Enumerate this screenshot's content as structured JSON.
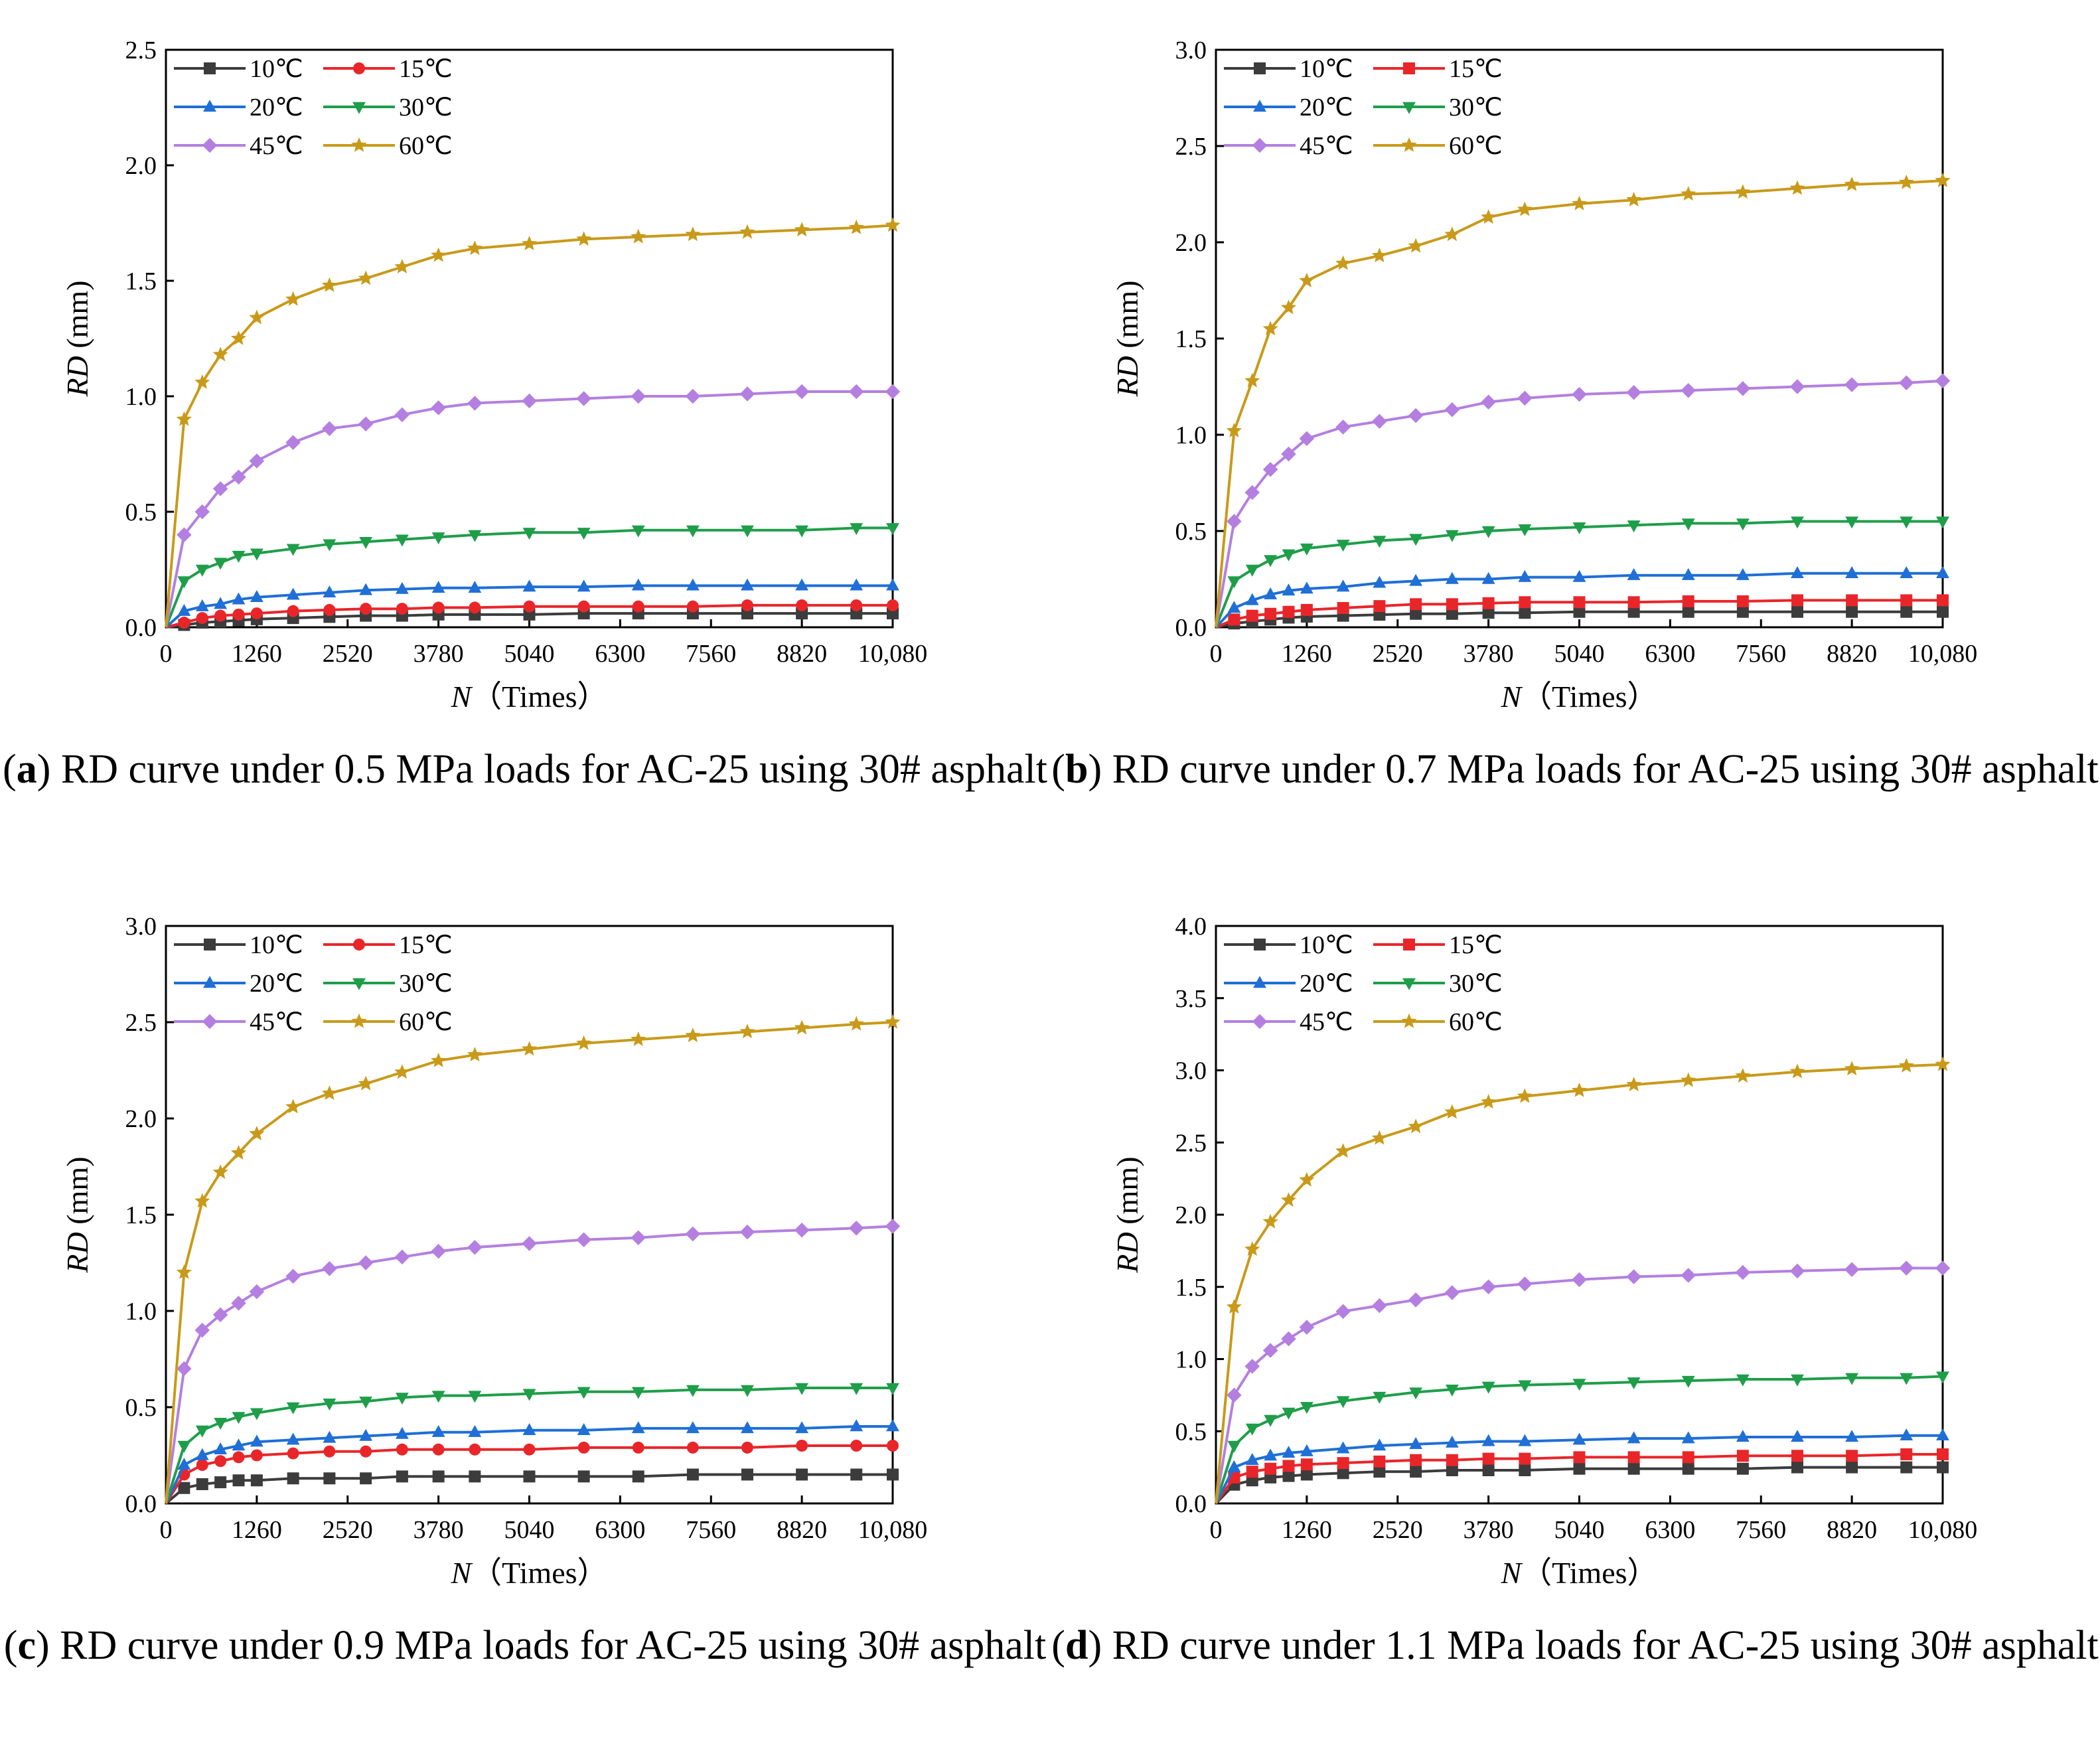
{
  "chart_data": [
    {
      "type": "line",
      "panel_letter": "a",
      "caption": "RD curve under 0.5 MPa loads for AC-25 using 30# asphalt",
      "xlabel_var": "N",
      "xlabel_unit": "（Times）",
      "ylabel_var": "RD",
      "ylabel_unit": " (mm)",
      "xlim": [
        0,
        10080
      ],
      "ylim": [
        0,
        2.5
      ],
      "xticks": [
        0,
        1260,
        2520,
        3780,
        5040,
        6300,
        7560,
        8820,
        10080
      ],
      "xtick_labels": [
        "0",
        "1260",
        "2520",
        "3780",
        "5040",
        "6300",
        "7560",
        "8820",
        "10,080"
      ],
      "yticks": [
        0,
        0.5,
        1.0,
        1.5,
        2.0,
        2.5
      ],
      "ytick_labels": [
        "0.0",
        "0.5",
        "1.0",
        "1.5",
        "2.0",
        "2.5"
      ],
      "x": [
        0,
        252,
        504,
        756,
        1008,
        1260,
        1764,
        2268,
        2772,
        3276,
        3780,
        4284,
        5040,
        5796,
        6552,
        7308,
        8064,
        8820,
        9576,
        10080
      ],
      "legend_position": "top-left",
      "series": [
        {
          "name": "10℃",
          "color": "#3c3c3c",
          "marker": "square",
          "values": [
            0.0,
            0.01,
            0.02,
            0.025,
            0.03,
            0.035,
            0.04,
            0.045,
            0.05,
            0.05,
            0.055,
            0.055,
            0.055,
            0.06,
            0.06,
            0.06,
            0.06,
            0.06,
            0.06,
            0.06
          ]
        },
        {
          "name": "15℃",
          "color": "#e8262a",
          "marker": "circle",
          "values": [
            0.0,
            0.02,
            0.04,
            0.05,
            0.055,
            0.06,
            0.07,
            0.075,
            0.08,
            0.08,
            0.085,
            0.085,
            0.09,
            0.09,
            0.09,
            0.09,
            0.095,
            0.095,
            0.095,
            0.095
          ]
        },
        {
          "name": "20℃",
          "color": "#1f6fd6",
          "marker": "triangle-up",
          "values": [
            0.0,
            0.07,
            0.09,
            0.1,
            0.12,
            0.13,
            0.14,
            0.15,
            0.16,
            0.165,
            0.17,
            0.17,
            0.175,
            0.175,
            0.18,
            0.18,
            0.18,
            0.18,
            0.18,
            0.18
          ]
        },
        {
          "name": "30℃",
          "color": "#1f9e4a",
          "marker": "triangle-down",
          "values": [
            0.0,
            0.2,
            0.25,
            0.28,
            0.31,
            0.32,
            0.34,
            0.36,
            0.37,
            0.38,
            0.39,
            0.4,
            0.41,
            0.41,
            0.42,
            0.42,
            0.42,
            0.42,
            0.43,
            0.43
          ]
        },
        {
          "name": "45℃",
          "color": "#b47fe0",
          "marker": "diamond",
          "values": [
            0.0,
            0.4,
            0.5,
            0.6,
            0.65,
            0.72,
            0.8,
            0.86,
            0.88,
            0.92,
            0.95,
            0.97,
            0.98,
            0.99,
            1.0,
            1.0,
            1.01,
            1.02,
            1.02,
            1.02
          ]
        },
        {
          "name": "60℃",
          "color": "#c99a1a",
          "marker": "star",
          "values": [
            0.0,
            0.9,
            1.06,
            1.18,
            1.25,
            1.34,
            1.42,
            1.48,
            1.51,
            1.56,
            1.61,
            1.64,
            1.66,
            1.68,
            1.69,
            1.7,
            1.71,
            1.72,
            1.73,
            1.74
          ]
        }
      ]
    },
    {
      "type": "line",
      "panel_letter": "b",
      "caption": "RD curve under 0.7 MPa loads for AC-25 using 30# asphalt",
      "xlabel_var": "N",
      "xlabel_unit": "（Times）",
      "ylabel_var": "RD",
      "ylabel_unit": " (mm)",
      "xlim": [
        0,
        10080
      ],
      "ylim": [
        0,
        3.0
      ],
      "xticks": [
        0,
        1260,
        2520,
        3780,
        5040,
        6300,
        7560,
        8820,
        10080
      ],
      "xtick_labels": [
        "0",
        "1260",
        "2520",
        "3780",
        "5040",
        "6300",
        "7560",
        "8820",
        "10,080"
      ],
      "yticks": [
        0,
        0.5,
        1.0,
        1.5,
        2.0,
        2.5,
        3.0
      ],
      "ytick_labels": [
        "0.0",
        "0.5",
        "1.0",
        "1.5",
        "2.0",
        "2.5",
        "3.0"
      ],
      "x": [
        0,
        252,
        504,
        756,
        1008,
        1260,
        1764,
        2268,
        2772,
        3276,
        3780,
        4284,
        5040,
        5796,
        6552,
        7308,
        8064,
        8820,
        9576,
        10080
      ],
      "legend_position": "top-left",
      "series": [
        {
          "name": "10℃",
          "color": "#3c3c3c",
          "marker": "square",
          "values": [
            0.0,
            0.02,
            0.03,
            0.04,
            0.05,
            0.055,
            0.06,
            0.065,
            0.07,
            0.07,
            0.075,
            0.075,
            0.08,
            0.08,
            0.08,
            0.08,
            0.08,
            0.08,
            0.08,
            0.08
          ]
        },
        {
          "name": "15℃",
          "color": "#e8262a",
          "marker": "square",
          "values": [
            0.0,
            0.04,
            0.06,
            0.07,
            0.08,
            0.09,
            0.1,
            0.11,
            0.12,
            0.12,
            0.125,
            0.13,
            0.13,
            0.13,
            0.135,
            0.135,
            0.14,
            0.14,
            0.14,
            0.14
          ]
        },
        {
          "name": "20℃",
          "color": "#1f6fd6",
          "marker": "triangle-up",
          "values": [
            0.0,
            0.1,
            0.14,
            0.17,
            0.19,
            0.2,
            0.21,
            0.23,
            0.24,
            0.25,
            0.25,
            0.26,
            0.26,
            0.27,
            0.27,
            0.27,
            0.28,
            0.28,
            0.28,
            0.28
          ]
        },
        {
          "name": "30℃",
          "color": "#1f9e4a",
          "marker": "triangle-down",
          "values": [
            0.0,
            0.24,
            0.3,
            0.35,
            0.38,
            0.41,
            0.43,
            0.45,
            0.46,
            0.48,
            0.5,
            0.51,
            0.52,
            0.53,
            0.54,
            0.54,
            0.55,
            0.55,
            0.55,
            0.55
          ]
        },
        {
          "name": "45℃",
          "color": "#b47fe0",
          "marker": "diamond",
          "values": [
            0.0,
            0.55,
            0.7,
            0.82,
            0.9,
            0.98,
            1.04,
            1.07,
            1.1,
            1.13,
            1.17,
            1.19,
            1.21,
            1.22,
            1.23,
            1.24,
            1.25,
            1.26,
            1.27,
            1.28
          ]
        },
        {
          "name": "60℃",
          "color": "#c99a1a",
          "marker": "star",
          "values": [
            0.0,
            1.02,
            1.28,
            1.55,
            1.66,
            1.8,
            1.89,
            1.93,
            1.98,
            2.04,
            2.13,
            2.17,
            2.2,
            2.22,
            2.25,
            2.26,
            2.28,
            2.3,
            2.31,
            2.32
          ]
        }
      ]
    },
    {
      "type": "line",
      "panel_letter": "c",
      "caption": "RD curve under 0.9 MPa loads for AC-25 using 30# asphalt",
      "xlabel_var": "N",
      "xlabel_unit": "（Times）",
      "ylabel_var": "RD",
      "ylabel_unit": " (mm)",
      "xlim": [
        0,
        10080
      ],
      "ylim": [
        0,
        3.0
      ],
      "xticks": [
        0,
        1260,
        2520,
        3780,
        5040,
        6300,
        7560,
        8820,
        10080
      ],
      "xtick_labels": [
        "0",
        "1260",
        "2520",
        "3780",
        "5040",
        "6300",
        "7560",
        "8820",
        "10,080"
      ],
      "yticks": [
        0,
        0.5,
        1.0,
        1.5,
        2.0,
        2.5,
        3.0
      ],
      "ytick_labels": [
        "0.0",
        "0.5",
        "1.0",
        "1.5",
        "2.0",
        "2.5",
        "3.0"
      ],
      "x": [
        0,
        252,
        504,
        756,
        1008,
        1260,
        1764,
        2268,
        2772,
        3276,
        3780,
        4284,
        5040,
        5796,
        6552,
        7308,
        8064,
        8820,
        9576,
        10080
      ],
      "legend_position": "top-left",
      "series": [
        {
          "name": "10℃",
          "color": "#3c3c3c",
          "marker": "square",
          "values": [
            0.0,
            0.08,
            0.1,
            0.11,
            0.12,
            0.12,
            0.13,
            0.13,
            0.13,
            0.14,
            0.14,
            0.14,
            0.14,
            0.14,
            0.14,
            0.15,
            0.15,
            0.15,
            0.15,
            0.15
          ]
        },
        {
          "name": "15℃",
          "color": "#e8262a",
          "marker": "circle",
          "values": [
            0.0,
            0.15,
            0.2,
            0.22,
            0.24,
            0.25,
            0.26,
            0.27,
            0.27,
            0.28,
            0.28,
            0.28,
            0.28,
            0.29,
            0.29,
            0.29,
            0.29,
            0.3,
            0.3,
            0.3
          ]
        },
        {
          "name": "20℃",
          "color": "#1f6fd6",
          "marker": "triangle-up",
          "values": [
            0.0,
            0.2,
            0.25,
            0.28,
            0.3,
            0.32,
            0.33,
            0.34,
            0.35,
            0.36,
            0.37,
            0.37,
            0.38,
            0.38,
            0.39,
            0.39,
            0.39,
            0.39,
            0.4,
            0.4
          ]
        },
        {
          "name": "30℃",
          "color": "#1f9e4a",
          "marker": "triangle-down",
          "values": [
            0.0,
            0.3,
            0.38,
            0.42,
            0.45,
            0.47,
            0.5,
            0.52,
            0.53,
            0.55,
            0.56,
            0.56,
            0.57,
            0.58,
            0.58,
            0.59,
            0.59,
            0.6,
            0.6,
            0.6
          ]
        },
        {
          "name": "45℃",
          "color": "#b47fe0",
          "marker": "diamond",
          "values": [
            0.0,
            0.7,
            0.9,
            0.98,
            1.04,
            1.1,
            1.18,
            1.22,
            1.25,
            1.28,
            1.31,
            1.33,
            1.35,
            1.37,
            1.38,
            1.4,
            1.41,
            1.42,
            1.43,
            1.44
          ]
        },
        {
          "name": "60℃",
          "color": "#c99a1a",
          "marker": "star",
          "values": [
            0.0,
            1.2,
            1.57,
            1.72,
            1.82,
            1.92,
            2.06,
            2.13,
            2.18,
            2.24,
            2.3,
            2.33,
            2.36,
            2.39,
            2.41,
            2.43,
            2.45,
            2.47,
            2.49,
            2.5
          ]
        }
      ]
    },
    {
      "type": "line",
      "panel_letter": "d",
      "caption": "RD curve under 1.1 MPa loads for AC-25 using 30# asphalt",
      "xlabel_var": "N",
      "xlabel_unit": "（Times）",
      "ylabel_var": "RD",
      "ylabel_unit": " (mm)",
      "xlim": [
        0,
        10080
      ],
      "ylim": [
        0,
        4.0
      ],
      "xticks": [
        0,
        1260,
        2520,
        3780,
        5040,
        6300,
        7560,
        8820,
        10080
      ],
      "xtick_labels": [
        "0",
        "1260",
        "2520",
        "3780",
        "5040",
        "6300",
        "7560",
        "8820",
        "10,080"
      ],
      "yticks": [
        0,
        0.5,
        1.0,
        1.5,
        2.0,
        2.5,
        3.0,
        3.5,
        4.0
      ],
      "ytick_labels": [
        "0.0",
        "0.5",
        "1.0",
        "1.5",
        "2.0",
        "2.5",
        "3.0",
        "3.5",
        "4.0"
      ],
      "x": [
        0,
        252,
        504,
        756,
        1008,
        1260,
        1764,
        2268,
        2772,
        3276,
        3780,
        4284,
        5040,
        5796,
        6552,
        7308,
        8064,
        8820,
        9576,
        10080
      ],
      "legend_position": "top-left",
      "series": [
        {
          "name": "10℃",
          "color": "#3c3c3c",
          "marker": "square",
          "values": [
            0.0,
            0.13,
            0.16,
            0.18,
            0.19,
            0.2,
            0.21,
            0.22,
            0.22,
            0.23,
            0.23,
            0.23,
            0.24,
            0.24,
            0.24,
            0.24,
            0.25,
            0.25,
            0.25,
            0.25
          ]
        },
        {
          "name": "15℃",
          "color": "#e8262a",
          "marker": "square",
          "values": [
            0.0,
            0.18,
            0.22,
            0.24,
            0.26,
            0.27,
            0.28,
            0.29,
            0.3,
            0.3,
            0.31,
            0.31,
            0.32,
            0.32,
            0.32,
            0.33,
            0.33,
            0.33,
            0.34,
            0.34
          ]
        },
        {
          "name": "20℃",
          "color": "#1f6fd6",
          "marker": "triangle-up",
          "values": [
            0.0,
            0.25,
            0.3,
            0.33,
            0.35,
            0.36,
            0.38,
            0.4,
            0.41,
            0.42,
            0.43,
            0.43,
            0.44,
            0.45,
            0.45,
            0.46,
            0.46,
            0.46,
            0.47,
            0.47
          ]
        },
        {
          "name": "30℃",
          "color": "#1f9e4a",
          "marker": "triangle-down",
          "values": [
            0.0,
            0.4,
            0.52,
            0.58,
            0.63,
            0.67,
            0.71,
            0.74,
            0.77,
            0.79,
            0.81,
            0.82,
            0.83,
            0.84,
            0.85,
            0.86,
            0.86,
            0.87,
            0.87,
            0.88
          ]
        },
        {
          "name": "45℃",
          "color": "#b47fe0",
          "marker": "diamond",
          "values": [
            0.0,
            0.75,
            0.95,
            1.06,
            1.14,
            1.22,
            1.33,
            1.37,
            1.41,
            1.46,
            1.5,
            1.52,
            1.55,
            1.57,
            1.58,
            1.6,
            1.61,
            1.62,
            1.63,
            1.63
          ]
        },
        {
          "name": "60℃",
          "color": "#c99a1a",
          "marker": "star",
          "values": [
            0.0,
            1.36,
            1.76,
            1.95,
            2.1,
            2.24,
            2.44,
            2.53,
            2.61,
            2.71,
            2.78,
            2.82,
            2.86,
            2.9,
            2.93,
            2.96,
            2.99,
            3.01,
            3.03,
            3.04
          ]
        }
      ]
    }
  ]
}
